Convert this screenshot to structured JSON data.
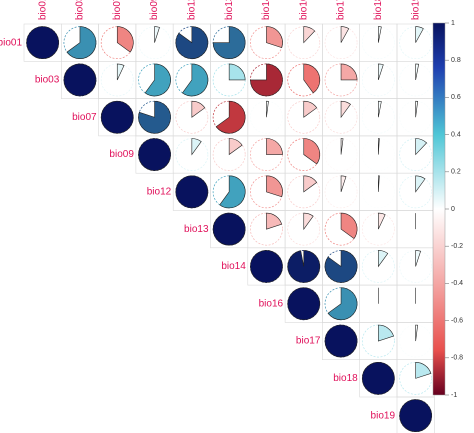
{
  "chart_data": {
    "type": "heatmap",
    "style": "correlation matrix, upper triangle, pie glyphs (filled fraction = |r|)",
    "variables": [
      "bio01",
      "bio03",
      "bio07",
      "bio09",
      "bio12",
      "bio13",
      "bio14",
      "bio16",
      "bio17",
      "bio18",
      "bio19"
    ],
    "matrix": [
      [
        1.0,
        0.65,
        -0.35,
        0.05,
        0.85,
        0.75,
        -0.3,
        -0.12,
        -0.08,
        0.03,
        0.08
      ],
      [
        0.65,
        1.0,
        0.07,
        0.6,
        0.6,
        0.25,
        -0.75,
        -0.4,
        -0.25,
        0.05,
        0.03
      ],
      [
        -0.35,
        0.07,
        1.0,
        0.8,
        -0.15,
        -0.65,
        0.02,
        -0.15,
        -0.1,
        0.03,
        0.02
      ],
      [
        0.05,
        0.6,
        0.8,
        1.0,
        0.1,
        -0.15,
        -0.25,
        -0.35,
        -0.02,
        0.01,
        0.12
      ],
      [
        0.85,
        0.6,
        -0.15,
        0.1,
        1.0,
        0.6,
        -0.3,
        -0.15,
        -0.05,
        0.01,
        0.1
      ],
      [
        0.75,
        0.25,
        -0.65,
        -0.15,
        0.6,
        1.0,
        -0.2,
        -0.1,
        -0.35,
        -0.07,
        0.0
      ],
      [
        -0.3,
        -0.75,
        0.02,
        -0.25,
        -0.3,
        -0.2,
        1.0,
        0.97,
        0.85,
        0.1,
        0.05
      ],
      [
        -0.12,
        -0.4,
        -0.15,
        -0.35,
        -0.15,
        -0.1,
        0.97,
        1.0,
        0.65,
        0.0,
        0.0
      ],
      [
        -0.08,
        -0.25,
        -0.1,
        -0.02,
        -0.05,
        -0.35,
        0.85,
        0.65,
        1.0,
        0.2,
        0.02
      ],
      [
        0.03,
        0.05,
        0.03,
        0.01,
        0.01,
        -0.07,
        0.1,
        0.0,
        0.2,
        1.0,
        0.2
      ],
      [
        0.08,
        0.03,
        0.02,
        0.12,
        0.1,
        0.0,
        0.05,
        0.0,
        0.02,
        0.2,
        1.0
      ]
    ],
    "colorbar": {
      "ticks": [
        "1",
        "0.8",
        "0.6",
        "0.4",
        "0.2",
        "0",
        "-0.2",
        "-0.4",
        "-0.6",
        "-0.8",
        "-1"
      ],
      "range": [
        -1,
        1
      ]
    },
    "label_color": "#e0105a",
    "palette": {
      "neg": "#67001f",
      "neg_mid": "#e8504d",
      "zero": "#ffffff",
      "pos_mid": "#4fc6d6",
      "pos": "#08125e"
    }
  }
}
